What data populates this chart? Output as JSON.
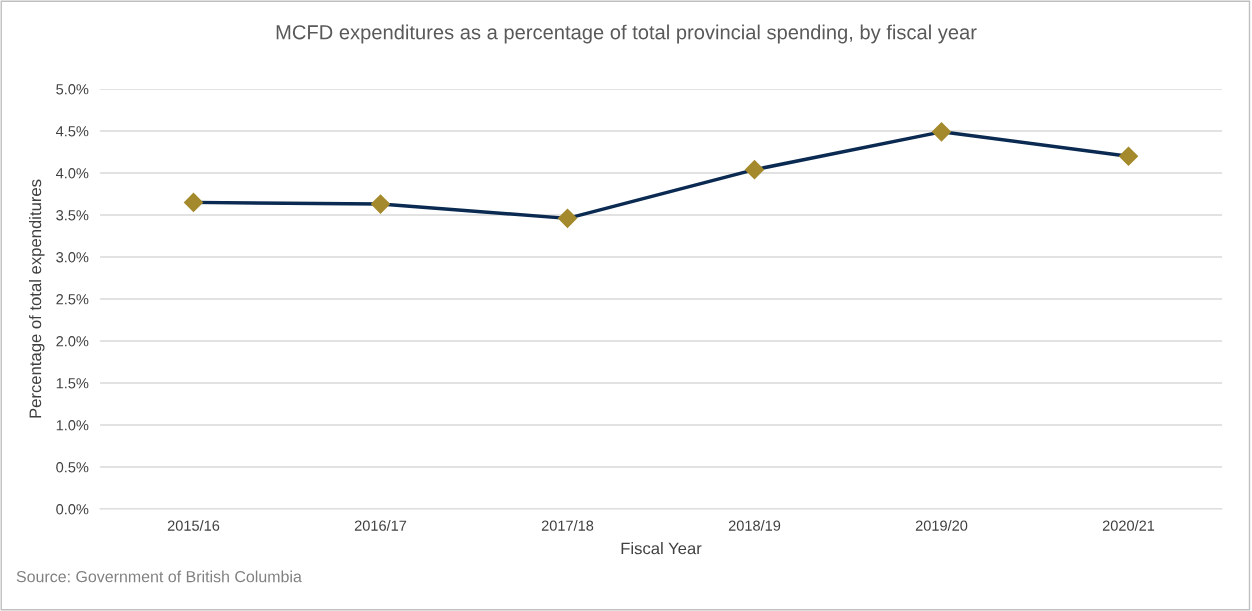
{
  "chart_data": {
    "type": "line",
    "title": "MCFD expenditures as a percentage of total provincial spending, by fiscal year",
    "xlabel": "Fiscal Year",
    "ylabel": "Percentage of total expenditures",
    "categories": [
      "2015/16",
      "2016/17",
      "2017/18",
      "2018/19",
      "2019/20",
      "2020/21"
    ],
    "series": [
      {
        "color": "#0b2a52",
        "values": [
          3.65,
          3.63,
          3.46,
          4.04,
          4.49,
          4.2
        ]
      }
    ],
    "ylim": [
      0,
      5
    ],
    "yticks": [
      {
        "value": 0,
        "label": "0.0%"
      },
      {
        "value": 0.5,
        "label": "0.5%"
      },
      {
        "value": 1,
        "label": "1.0%"
      },
      {
        "value": 1.5,
        "label": "1.5%"
      },
      {
        "value": 2,
        "label": "2.0%"
      },
      {
        "value": 2.5,
        "label": "2.5%"
      },
      {
        "value": 3,
        "label": "3.0%"
      },
      {
        "value": 3.5,
        "label": "3.5%"
      },
      {
        "value": 4,
        "label": "4.0%"
      },
      {
        "value": 4.5,
        "label": "4.5%"
      },
      {
        "value": 5,
        "label": "5.0%"
      }
    ],
    "grid": "y",
    "marker": "diamond",
    "line_style": "solid",
    "legend": false,
    "annotations": [
      "Source: Government of British Columbia"
    ]
  }
}
